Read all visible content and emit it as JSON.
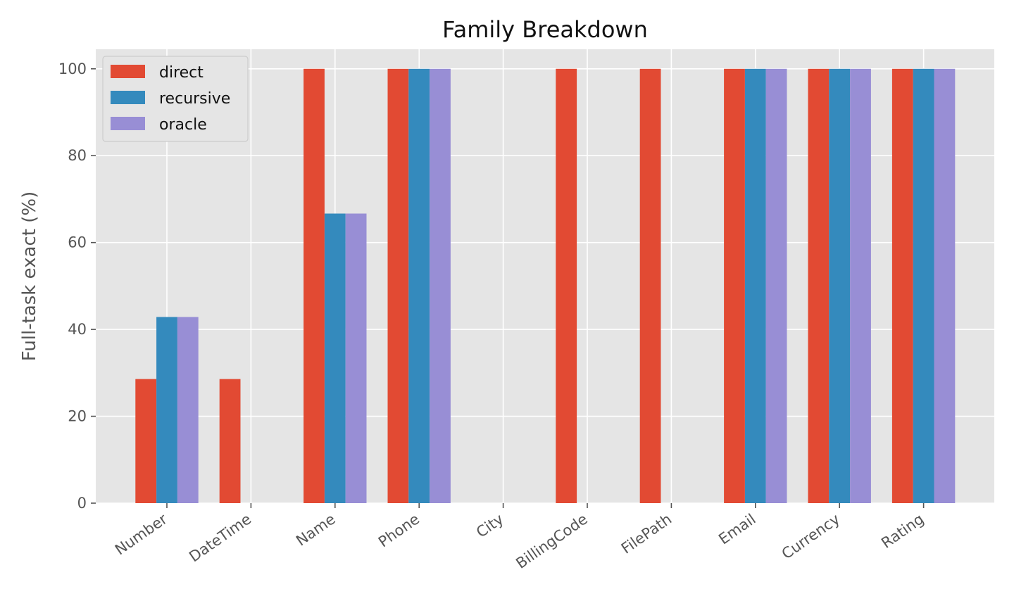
{
  "chart_data": {
    "type": "bar",
    "title": "Family Breakdown",
    "xlabel": "",
    "ylabel": "Full-task exact (%)",
    "categories": [
      "Number",
      "DateTime",
      "Name",
      "Phone",
      "City",
      "BillingCode",
      "FilePath",
      "Email",
      "Currency",
      "Rating"
    ],
    "series": [
      {
        "name": "direct",
        "color": "#E24A33",
        "values": [
          28.57,
          28.57,
          100,
          100,
          0,
          100,
          100,
          100,
          100,
          100
        ]
      },
      {
        "name": "recursive",
        "color": "#348ABD",
        "values": [
          42.86,
          0,
          66.67,
          100,
          0,
          0,
          0,
          100,
          100,
          100
        ]
      },
      {
        "name": "oracle",
        "color": "#988ED5",
        "values": [
          42.86,
          0,
          66.67,
          100,
          0,
          0,
          0,
          100,
          100,
          100
        ]
      }
    ],
    "ylim": [
      0,
      104.5
    ],
    "yticks": [
      0,
      20,
      40,
      60,
      80,
      100
    ],
    "grid": true,
    "legend_position": "top-left",
    "plot_background": "#E5E5E5",
    "grid_color": "#FFFFFF"
  }
}
